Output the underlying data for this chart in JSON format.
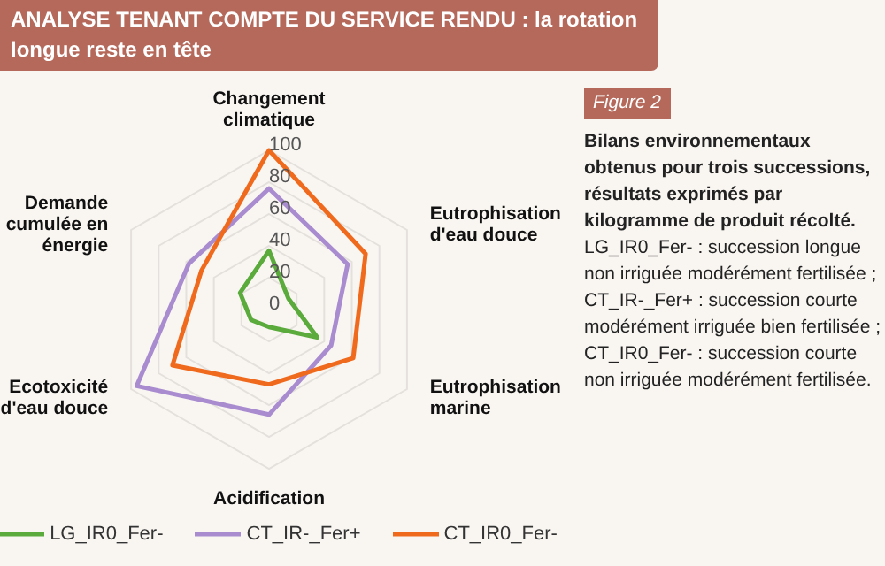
{
  "chart_data": {
    "type": "radar",
    "title": "ANALYSE TENANT COMPTE DU SERVICE RENDU : la rotation longue reste en tête",
    "subtitle": "Bilans environnementaux obtenus pour trois successions, résultats exprimés par kilogramme de produit récolté.",
    "annotations": [
      "Figure 2",
      "LG_IR0_Fer- : succession longue non irriguée modérément fertilisée ;",
      "CT_IR-_Fer+ : succession courte modérément irriguée bien fertilisée ;",
      "CT_IR0_Fer- : succession courte non irriguée modérément fertilisée."
    ],
    "categories": [
      "Changement climatique",
      "Eutrophisation d'eau douce",
      "Eutrophisation marine",
      "Acidification",
      "Ecotoxicité d'eau douce",
      "Demande cumulée en énergie"
    ],
    "series": [
      {
        "name": "LG_IR0_Fer-",
        "color": "#5aaa3c",
        "values": [
          37,
          14,
          35,
          11,
          13,
          21
        ]
      },
      {
        "name": "CT_IR-_Fer+",
        "color": "#a98ccf",
        "values": [
          76,
          57,
          45,
          66,
          96,
          58
        ]
      },
      {
        "name": "CT_IR0_Fer-",
        "color": "#f06a1e",
        "values": [
          100,
          70,
          61,
          47,
          70,
          49
        ]
      }
    ],
    "ylim": [
      0,
      100
    ],
    "yticks": [
      0,
      20,
      40,
      60,
      80,
      100
    ],
    "grid": true,
    "legend": "bottom",
    "marker": "none"
  }
}
